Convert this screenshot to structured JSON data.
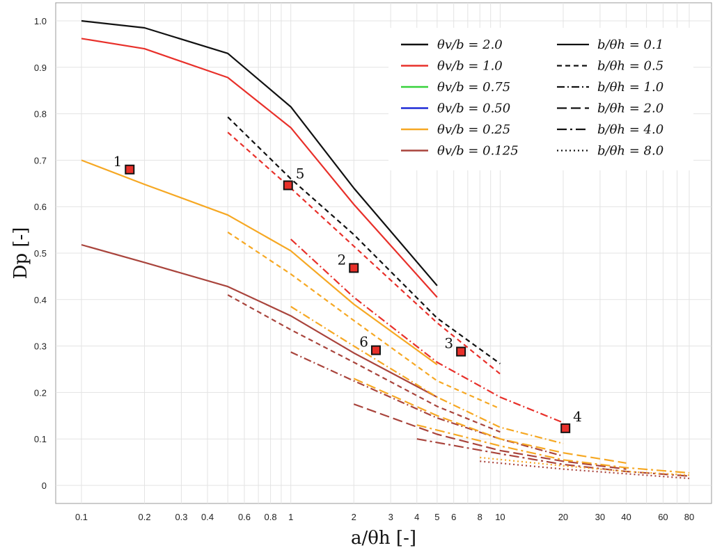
{
  "chart_data": {
    "type": "line",
    "xscale": "log",
    "xlabel": "a/θh [-]",
    "ylabel": "Dp [-]",
    "xlim": [
      0.08,
      90
    ],
    "ylim": [
      -0.04,
      1.04
    ],
    "xticks": [
      0.1,
      0.2,
      0.3,
      0.4,
      0.6,
      0.8,
      1,
      2,
      3,
      4,
      5,
      6,
      8,
      10,
      20,
      30,
      40,
      60,
      80
    ],
    "xtick_labels": [
      "0.1",
      "0.2",
      "0.3",
      "0.4",
      "0.6",
      "0.8",
      "1",
      "2",
      "3",
      "4",
      "5",
      "6",
      "8",
      "10",
      "20",
      "30",
      "40",
      "60",
      "80"
    ],
    "xgrid_extra": [
      0.5,
      0.7,
      0.9,
      7,
      9,
      50,
      70
    ],
    "yticks": [
      0,
      0.1,
      0.2,
      0.3,
      0.4,
      0.5,
      0.6,
      0.7,
      0.8,
      0.9,
      1.0
    ],
    "ytick_labels": [
      "0",
      "0.1",
      "0.2",
      "0.3",
      "0.4",
      "0.5",
      "0.6",
      "0.7",
      "0.8",
      "0.9",
      "1.0"
    ],
    "legend_colors": [
      {
        "label": "θv/b = 2.0",
        "color": "#111111"
      },
      {
        "label": "θv/b = 1.0",
        "color": "#e8302a"
      },
      {
        "label": "θv/b = 0.75",
        "color": "#36d13a"
      },
      {
        "label": "θv/b = 0.50",
        "color": "#1f2bd6"
      },
      {
        "label": "θv/b = 0.25",
        "color": "#f6a823"
      },
      {
        "label": "θv/b = 0.125",
        "color": "#a9443c"
      }
    ],
    "legend_styles": [
      {
        "label": "b/θh = 0.1",
        "dash": ""
      },
      {
        "label": "b/θh = 0.5",
        "dash": "7,5"
      },
      {
        "label": "b/θh = 1.0",
        "dash": "11,4,2,4"
      },
      {
        "label": "b/θh = 2.0",
        "dash": "14,6"
      },
      {
        "label": "b/θh = 4.0",
        "dash": "14,5,3,5"
      },
      {
        "label": "b/θh = 8.0",
        "dash": "2,4"
      }
    ],
    "series": [
      {
        "name": "θv/b=2.0, b/θh=0.1",
        "color": "#111111",
        "dash": "",
        "x": [
          0.1,
          0.2,
          0.5,
          1,
          2,
          5
        ],
        "y": [
          1.0,
          0.985,
          0.93,
          0.815,
          0.64,
          0.43
        ]
      },
      {
        "name": "θv/b=1.0, b/θh=0.1",
        "color": "#e8302a",
        "dash": "",
        "x": [
          0.1,
          0.2,
          0.5,
          1,
          2,
          5
        ],
        "y": [
          0.962,
          0.94,
          0.878,
          0.77,
          0.605,
          0.405
        ]
      },
      {
        "name": "θv/b=0.25, b/θh=0.1",
        "color": "#f6a823",
        "dash": "",
        "x": [
          0.1,
          0.2,
          0.5,
          1,
          2,
          5
        ],
        "y": [
          0.7,
          0.648,
          0.582,
          0.505,
          0.39,
          0.26
        ]
      },
      {
        "name": "θv/b=0.125, b/θh=0.1",
        "color": "#a9443c",
        "dash": "",
        "x": [
          0.1,
          0.2,
          0.5,
          1,
          2,
          5
        ],
        "y": [
          0.518,
          0.48,
          0.428,
          0.365,
          0.285,
          0.19
        ]
      },
      {
        "name": "θv/b=2.0, b/θh=0.5",
        "color": "#111111",
        "dash": "7,5",
        "x": [
          0.5,
          1,
          2,
          5,
          10
        ],
        "y": [
          0.793,
          0.66,
          0.54,
          0.36,
          0.262
        ]
      },
      {
        "name": "θv/b=1.0, b/θh=0.5",
        "color": "#e8302a",
        "dash": "7,5",
        "x": [
          0.5,
          1,
          2,
          5,
          10
        ],
        "y": [
          0.76,
          0.64,
          0.515,
          0.35,
          0.24
        ]
      },
      {
        "name": "θv/b=0.25, b/θh=0.5",
        "color": "#f6a823",
        "dash": "7,5",
        "x": [
          0.5,
          1,
          2,
          5,
          10
        ],
        "y": [
          0.545,
          0.455,
          0.355,
          0.225,
          0.165
        ]
      },
      {
        "name": "θv/b=0.125, b/θh=0.5",
        "color": "#a9443c",
        "dash": "7,5",
        "x": [
          0.5,
          1,
          2,
          5,
          10
        ],
        "y": [
          0.41,
          0.335,
          0.265,
          0.17,
          0.115
        ]
      },
      {
        "name": "θv/b=1.0, b/θh=1.0",
        "color": "#e8302a",
        "dash": "11,4,2,4",
        "x": [
          1,
          2,
          5,
          10,
          20
        ],
        "y": [
          0.53,
          0.405,
          0.265,
          0.19,
          0.135
        ]
      },
      {
        "name": "θv/b=0.25, b/θh=1.0",
        "color": "#f6a823",
        "dash": "11,4,2,4",
        "x": [
          1,
          2,
          5,
          10,
          20
        ],
        "y": [
          0.385,
          0.3,
          0.19,
          0.125,
          0.09
        ]
      },
      {
        "name": "θv/b=0.125, b/θh=1.0",
        "color": "#a9443c",
        "dash": "11,4,2,4",
        "x": [
          1,
          2,
          5,
          10,
          20
        ],
        "y": [
          0.287,
          0.225,
          0.145,
          0.1,
          0.063
        ]
      },
      {
        "name": "θv/b=0.25, b/θh=2.0",
        "color": "#f6a823",
        "dash": "14,6",
        "x": [
          2,
          5,
          10,
          20,
          40
        ],
        "y": [
          0.23,
          0.15,
          0.1,
          0.07,
          0.048
        ]
      },
      {
        "name": "θv/b=0.125, b/θh=2.0",
        "color": "#a9443c",
        "dash": "14,6",
        "x": [
          2,
          5,
          10,
          20,
          40
        ],
        "y": [
          0.175,
          0.11,
          0.075,
          0.052,
          0.035
        ]
      },
      {
        "name": "θv/b=0.25, b/θh=4.0",
        "color": "#f6a823",
        "dash": "14,5,3,5",
        "x": [
          4,
          10,
          20,
          40,
          80
        ],
        "y": [
          0.13,
          0.085,
          0.055,
          0.038,
          0.027
        ]
      },
      {
        "name": "θv/b=0.125, b/θh=4.0",
        "color": "#a9443c",
        "dash": "14,5,3,5",
        "x": [
          4,
          10,
          20,
          40,
          80
        ],
        "y": [
          0.1,
          0.068,
          0.045,
          0.03,
          0.02
        ]
      },
      {
        "name": "θv/b=0.25, b/θh=8.0",
        "color": "#f6a823",
        "dash": "2,4",
        "x": [
          8,
          20,
          40,
          80
        ],
        "y": [
          0.06,
          0.042,
          0.03,
          0.022
        ]
      },
      {
        "name": "θv/b=0.125, b/θh=8.0",
        "color": "#a9443c",
        "dash": "2,4",
        "x": [
          8,
          20,
          40,
          80
        ],
        "y": [
          0.052,
          0.035,
          0.025,
          0.015
        ]
      }
    ],
    "markers": [
      {
        "label": "1",
        "x": 0.17,
        "y": 0.68,
        "color": "#e8302a",
        "label_side": "left"
      },
      {
        "label": "2",
        "x": 2.0,
        "y": 0.468,
        "color": "#e8302a",
        "label_side": "left"
      },
      {
        "label": "3",
        "x": 6.5,
        "y": 0.288,
        "color": "#e8302a",
        "label_side": "left"
      },
      {
        "label": "4",
        "x": 20.5,
        "y": 0.123,
        "color": "#e8302a",
        "label_side": "above-right"
      },
      {
        "label": "5",
        "x": 0.97,
        "y": 0.646,
        "color": "#e8302a",
        "label_side": "above-right"
      },
      {
        "label": "6",
        "x": 2.55,
        "y": 0.291,
        "color": "#e8302a",
        "label_side": "left"
      }
    ]
  }
}
